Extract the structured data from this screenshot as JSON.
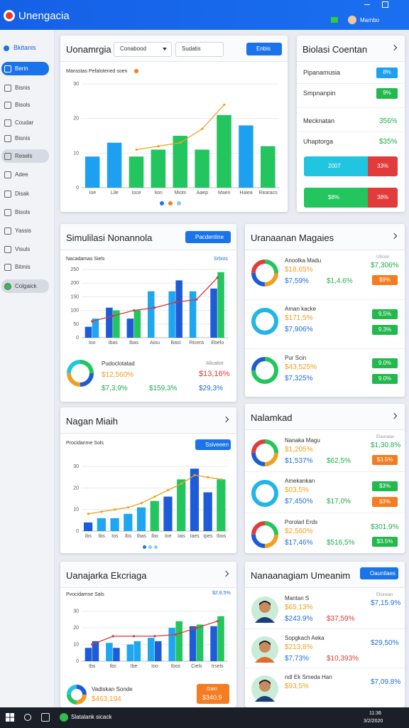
{
  "titlebar": {
    "title": "Unengacia",
    "user": "Marnbo"
  },
  "sidebar": {
    "heading": "Bkitanis",
    "items": [
      "Berin",
      "Bisnis",
      "Bisols",
      "Coudar",
      "Bisnis",
      "Resels",
      "Adee",
      "Disak",
      "Bisols",
      "Yassis",
      "Visuls",
      "Bitmis",
      "Colgaick"
    ]
  },
  "overview": {
    "title": "Uonamrgia",
    "select1": "Conabood",
    "select2": "Sudatis",
    "button": "Enbis",
    "subtitle": "Mansstas Pefalotened soen"
  },
  "simulation": {
    "title": "Simulilasi Nonannola",
    "button": "Pacdentine",
    "subtitle": "Nacadamas Siels",
    "legend": "Srbios",
    "summary": {
      "label": "Pudoclotatad",
      "v1": "$12,560%",
      "v2": "$7,3,9%",
      "v3": "$159,3%",
      "note": "Alicatiot",
      "v4": "$13,16%",
      "v5": "$29,3%"
    }
  },
  "nagan": {
    "title": "Nagan Miaih",
    "subtitle": "Procidanme Sols",
    "button": "Ssiveeen"
  },
  "ekcriaga": {
    "title": "Uanajarka Ekcriaga",
    "subtitle": "Pvocidamse Sals",
    "legend": "$2.8,5%",
    "summary": {
      "label": "Vadiskan Sonde",
      "value": "$463,194",
      "button_label": "Gaio",
      "button_value": "$340.9"
    }
  },
  "charts": [
    {
      "categories": [
        "Ioe",
        "Lile",
        "Ioce",
        "Iion",
        "Miotn",
        "Aaep",
        "Maen",
        "Haiea",
        "Rearacs"
      ],
      "ylim": [
        0,
        30
      ],
      "yticks": [
        0,
        10,
        20,
        30
      ],
      "series": [
        {
          "colors": [
            "#1ea0f0",
            "#1ea0f0",
            "#22c55e",
            "#22c55e",
            "#22c55e",
            "#22c55e",
            "#22c55e",
            "#1ea0f0",
            "#22c55e"
          ],
          "values": [
            9,
            13,
            9,
            11,
            15,
            11,
            21,
            18,
            12
          ]
        }
      ],
      "line": {
        "color": "#f0a020",
        "values": [
          null,
          null,
          11,
          12,
          13,
          17,
          24,
          null,
          null
        ]
      }
    },
    {
      "categories": [
        "Ioo",
        "Ibas",
        "Ibas",
        "Aiou",
        "Bast",
        "Ricera",
        "Ebelo"
      ],
      "ylim": [
        0,
        250
      ],
      "yticks": [
        0,
        50,
        100,
        150,
        200,
        250
      ],
      "series": [
        {
          "colors": [
            "#1d5bd8",
            "#1d5bd8",
            "#1d5bd8",
            "#1ea7f0",
            "#1ea7f0",
            "#1ea7f0",
            "#1d5bd8"
          ],
          "values": [
            40,
            110,
            70,
            170,
            170,
            170,
            180
          ]
        },
        {
          "colors": [
            "#1ea7f0",
            "#22c55e",
            "#22c55e",
            "#22c55e",
            "#1d5bd8",
            "#1ea7f0",
            "#22c55e"
          ],
          "values": [
            70,
            100,
            100,
            null,
            210,
            null,
            240
          ]
        }
      ],
      "line": {
        "color": "#d9363e",
        "values": [
          60,
          80,
          100,
          110,
          130,
          140,
          220
        ]
      }
    },
    {
      "categories": [
        "Ibs",
        "Ibs",
        "Ios",
        "Ibs",
        "Ibas",
        "Ibo",
        "Ioe",
        "Iais",
        "Iaes",
        "Ipes",
        "Ibos"
      ],
      "ylim": [
        0,
        35
      ],
      "yticks": [
        0,
        10,
        20,
        30
      ],
      "series": [
        {
          "colors": [
            "#1d5bd8",
            "#1ea7f0",
            "#1ea7f0",
            "#1ea7f0",
            "#1ea7f0",
            "#22c55e",
            "#1d5bd8",
            "#22c55e",
            "#1d5bd8",
            "#1d5bd8",
            "#22c55e"
          ],
          "values": [
            4,
            6,
            6,
            8,
            11,
            14,
            16,
            24,
            29,
            18,
            24
          ]
        }
      ],
      "line": {
        "color": "#f0a020",
        "values": [
          8,
          9,
          10,
          11,
          13,
          16,
          19,
          22,
          26,
          25,
          24
        ]
      }
    },
    {
      "categories": [
        "Ibs",
        "Ibs",
        "Ibe",
        "Ioo",
        "Ibos",
        "Ciels",
        "Irsels"
      ],
      "ylim": [
        0,
        35
      ],
      "yticks": [
        0,
        10,
        20,
        30
      ],
      "series": [
        {
          "colors": [
            "#1d5bd8",
            "#1ea7f0",
            "#1ea7f0",
            "#1ea7f0",
            "#1ea7f0",
            "#1d5bd8",
            "#1d5bd8"
          ],
          "values": [
            8,
            11,
            10,
            14,
            20,
            21,
            21
          ]
        },
        {
          "colors": [
            "#1d5bd8",
            "#1d5bd8",
            "#1ea7f0",
            "#1d5bd8",
            "#22c55e",
            "#22c55e",
            "#22c55e"
          ],
          "values": [
            12,
            8,
            12,
            12,
            24,
            22,
            27
          ]
        }
      ],
      "line": {
        "color": "#d9363e",
        "values": [
          10,
          15,
          15,
          15,
          16,
          20,
          24
        ]
      }
    }
  ],
  "coentan": {
    "title": "Biolasi Coentan",
    "rows": [
      {
        "label": "Pipanamusia",
        "badge": "8%",
        "color": "#1ea0f0"
      },
      {
        "label": "Smpnanpin",
        "badge": "9%",
        "color": "#22b84c"
      },
      {
        "label": "Mecknatan",
        "value": "356%"
      },
      {
        "label": "Uhaptorga",
        "value": "$35%"
      }
    ],
    "bars": [
      {
        "left": "2007",
        "right": "33%",
        "color": "#22c5e0"
      },
      {
        "left": "$8%",
        "right": "38%",
        "color": "#22c55e"
      }
    ]
  },
  "magaies": {
    "title": "Uranaanan Magaies",
    "rows": [
      {
        "name": "Anoolka Madu",
        "v1": "$18,65%",
        "v2": "$7,59%",
        "v3": "$1,4.6%",
        "note": "Uitcion",
        "right": "$7,306%",
        "badges": [
          {
            "text": "$9%",
            "color": "#f57c20"
          }
        ]
      },
      {
        "name": "Aman kacke",
        "v1": "$171,5%",
        "v2": "$7,906%",
        "badges": [
          {
            "text": "9,5%",
            "color": "#22b84c"
          },
          {
            "text": "9.3%",
            "color": "#22b84c"
          }
        ]
      },
      {
        "name": "Pur Scin",
        "v1": "$43,525%",
        "v2": "$7,325%",
        "badges": [
          {
            "text": "9.0%",
            "color": "#22b84c"
          },
          {
            "text": "9.0%",
            "color": "#22b84c"
          }
        ]
      }
    ]
  },
  "nalamkad": {
    "title": "Nalamkad",
    "rows": [
      {
        "name": "Nanaka Magu",
        "v1": "$1,205%",
        "v2": "$1,537%",
        "v3": "$62,5%",
        "note": "Elaoraiax",
        "right": "$1,30.8%",
        "badges": [
          {
            "text": "$3.5%",
            "color": "#f57c20"
          }
        ]
      },
      {
        "name": "Amekankan",
        "v1": "$03,5%",
        "v2": "$7,450%",
        "v3": "$17,0%",
        "badges": [
          {
            "text": "$3%",
            "color": "#22b84c"
          },
          {
            "text": "$3%",
            "color": "#f57c20"
          }
        ]
      },
      {
        "name": "Porolarl Erds",
        "v1": "$2,560%",
        "v2": "$17,46%",
        "v3": "$516,5%",
        "right": "$301.9%",
        "badges": [
          {
            "text": "$3.5%",
            "color": "#22b84c"
          }
        ]
      }
    ]
  },
  "umeanim": {
    "title": "Nanaanagiam Umeanim",
    "button": "Oaunilaes",
    "rows": [
      {
        "name": "Mantan S",
        "v1": "$65,13%",
        "v2": "$243.9%",
        "v3": "$37,59%",
        "note": "Elioreian",
        "right": "$7,15.9%"
      },
      {
        "name": "Sopgkach Aeka",
        "v1": "$213,8%",
        "v2": "$7,73%",
        "v3": "$10,393%",
        "right": "$29,50%"
      },
      {
        "name": "ndl Ek Smeda Han",
        "v1": "$93,5%",
        "right": "$7,09.8%"
      }
    ]
  },
  "taskbar": {
    "app": "Slatalank sicack",
    "time": "11:36",
    "date": "3/2/2020"
  }
}
